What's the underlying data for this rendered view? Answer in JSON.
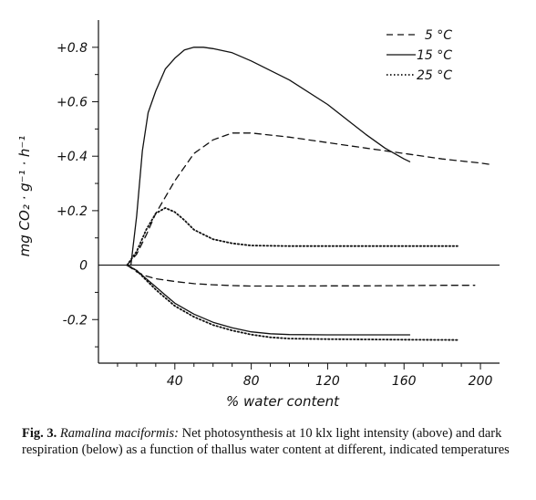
{
  "chart_data": {
    "type": "line",
    "xlabel": "% water content",
    "ylabel": "mg CO₂ · g⁻¹ · h⁻¹",
    "xlim": [
      0,
      210
    ],
    "ylim": [
      -0.36,
      0.9
    ],
    "x_ticks": [
      40,
      80,
      120,
      160,
      200
    ],
    "y_ticks": [
      {
        "value": 0.8,
        "label": "+0.8"
      },
      {
        "value": 0.6,
        "label": "+0.6"
      },
      {
        "value": 0.4,
        "label": "+0.4"
      },
      {
        "value": 0.2,
        "label": "+0.2"
      },
      {
        "value": 0.0,
        "label": "0"
      },
      {
        "value": -0.2,
        "label": "-0.2"
      }
    ],
    "grid": false,
    "legend_position": "top-right",
    "series": [
      {
        "name": "5 °C",
        "style": "dashed",
        "section": "photosynthesis",
        "x": [
          15,
          20,
          25,
          30,
          40,
          50,
          60,
          70,
          80,
          100,
          120,
          140,
          160,
          180,
          200,
          205
        ],
        "y": [
          0.0,
          0.04,
          0.11,
          0.19,
          0.31,
          0.41,
          0.46,
          0.485,
          0.485,
          0.47,
          0.45,
          0.43,
          0.41,
          0.39,
          0.375,
          0.37
        ]
      },
      {
        "name": "15 °C",
        "style": "solid",
        "section": "photosynthesis",
        "x": [
          17,
          20,
          23,
          26,
          30,
          35,
          40,
          45,
          50,
          55,
          60,
          70,
          80,
          100,
          120,
          140,
          150,
          160,
          163
        ],
        "y": [
          0.0,
          0.18,
          0.42,
          0.56,
          0.64,
          0.72,
          0.76,
          0.79,
          0.8,
          0.8,
          0.795,
          0.78,
          0.75,
          0.68,
          0.59,
          0.48,
          0.43,
          0.39,
          0.38
        ]
      },
      {
        "name": "25 °C",
        "style": "dotted",
        "section": "photosynthesis",
        "x": [
          15,
          20,
          25,
          30,
          35,
          40,
          45,
          50,
          60,
          70,
          80,
          100,
          120,
          140,
          160,
          188
        ],
        "y": [
          0.0,
          0.05,
          0.13,
          0.19,
          0.21,
          0.195,
          0.165,
          0.13,
          0.095,
          0.08,
          0.072,
          0.07,
          0.07,
          0.07,
          0.07,
          0.07
        ]
      },
      {
        "name": "5 °C",
        "style": "dashed",
        "section": "respiration",
        "x": [
          15,
          20,
          25,
          30,
          40,
          50,
          60,
          70,
          80,
          100,
          120,
          140,
          160,
          180,
          197
        ],
        "y": [
          0.0,
          -0.025,
          -0.04,
          -0.05,
          -0.06,
          -0.068,
          -0.072,
          -0.075,
          -0.077,
          -0.077,
          -0.076,
          -0.076,
          -0.075,
          -0.074,
          -0.074
        ]
      },
      {
        "name": "15 °C",
        "style": "solid",
        "section": "respiration",
        "x": [
          15,
          20,
          25,
          30,
          35,
          40,
          50,
          60,
          70,
          80,
          90,
          100,
          120,
          140,
          163
        ],
        "y": [
          0.0,
          -0.02,
          -0.05,
          -0.08,
          -0.11,
          -0.14,
          -0.18,
          -0.21,
          -0.23,
          -0.245,
          -0.252,
          -0.255,
          -0.256,
          -0.256,
          -0.256
        ]
      },
      {
        "name": "25 °C",
        "style": "dotted",
        "section": "respiration",
        "x": [
          15,
          20,
          25,
          30,
          35,
          40,
          50,
          60,
          70,
          80,
          90,
          100,
          120,
          140,
          160,
          188
        ],
        "y": [
          0.0,
          -0.02,
          -0.055,
          -0.09,
          -0.12,
          -0.15,
          -0.19,
          -0.22,
          -0.24,
          -0.255,
          -0.265,
          -0.27,
          -0.272,
          -0.273,
          -0.274,
          -0.275
        ]
      }
    ],
    "legend": [
      {
        "label": "5 °C",
        "style": "dashed"
      },
      {
        "label": "15 °C",
        "style": "solid"
      },
      {
        "label": "25 °C",
        "style": "dotted"
      }
    ]
  },
  "caption": {
    "fig_label": "Fig. 3.",
    "species": "Ramalina maciformis:",
    "text": " Net photosynthesis at 10 klx light intensity (above) and dark respiration (below) as a function of thallus water content at different, indicated temperatures"
  }
}
